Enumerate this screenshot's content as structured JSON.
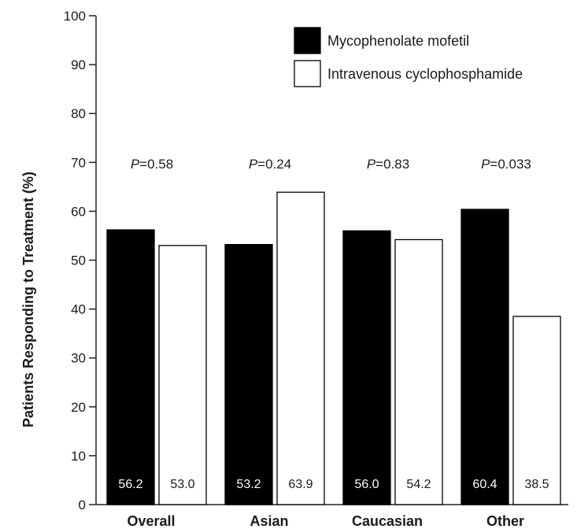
{
  "chart_data": {
    "type": "bar",
    "title": "",
    "xlabel": "",
    "ylabel": "Patients Responding to Treatment (%)",
    "ylim": [
      0,
      100
    ],
    "yticks": [
      0,
      10,
      20,
      30,
      40,
      50,
      60,
      70,
      80,
      90,
      100
    ],
    "categories": [
      "Overall",
      "Asian",
      "Caucasian",
      "Other"
    ],
    "series": [
      {
        "name": "Mycophenolate mofetil",
        "color": "#000000",
        "values": [
          56.2,
          53.2,
          56.0,
          60.4
        ]
      },
      {
        "name": "Intravenous cyclophosphamide",
        "color": "#ffffff",
        "values": [
          53.0,
          63.9,
          54.2,
          38.5
        ]
      }
    ],
    "data_labels": [
      [
        "56.2",
        "53.2",
        "56.0",
        "60.4"
      ],
      [
        "53.0",
        "63.9",
        "54.2",
        "38.5"
      ]
    ],
    "p_values": [
      {
        "prefix": "P",
        "text": "=0.58"
      },
      {
        "prefix": "P",
        "text": "=0.24"
      },
      {
        "prefix": "P",
        "text": "=0.83"
      },
      {
        "prefix": "P",
        "text": "=0.033"
      }
    ],
    "legend_position": "top-right",
    "grid": false
  }
}
